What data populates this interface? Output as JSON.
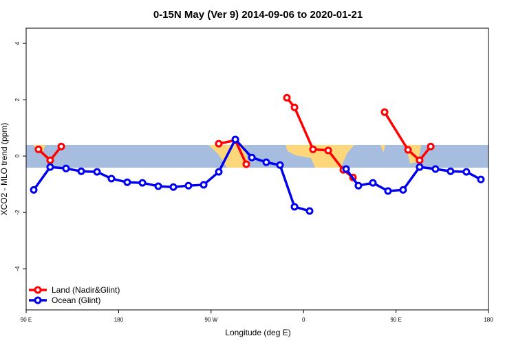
{
  "chart_data": {
    "type": "line",
    "title": "0-15N May (Ver 9)   2014-09-06 to 2020-01-21",
    "x_label": "Longitude (deg E)",
    "y_label": "XCO2 - MLO trend (ppm)",
    "xlim": [
      90,
      540
    ],
    "ylim": [
      -5.46,
      4.54
    ],
    "xticks": [
      {
        "value": 90,
        "label": "90 E"
      },
      {
        "value": 180,
        "label": "180"
      },
      {
        "value": 270,
        "label": "90 W"
      },
      {
        "value": 360,
        "label": "0"
      },
      {
        "value": 450,
        "label": "90 E"
      },
      {
        "value": 540,
        "label": "180"
      }
    ],
    "yticks": [
      -4,
      -2,
      0,
      2,
      4
    ],
    "legend": "bottom-left",
    "series": [
      {
        "name": "Land (Nadir&Glint)",
        "color": "#ff0000",
        "x": [
          102,
          113.4,
          124.2,
          null,
          277.5,
          293.6,
          304.3,
          null,
          343.8,
          351.2,
          369.2,
          384,
          398.7,
          408.1,
          null,
          438.9,
          461.7,
          473,
          483.8
        ],
        "values": [
          0.24,
          -0.15,
          0.34,
          null,
          0.44,
          0.56,
          -0.29,
          null,
          2.07,
          1.73,
          0.24,
          0.2,
          -0.49,
          -0.76,
          null,
          1.56,
          0.22,
          -0.15,
          0.34
        ]
      },
      {
        "name": "Ocean (Glint)",
        "color": "#0000ee",
        "x": [
          97.4,
          113.4,
          128.8,
          143.6,
          159,
          173,
          188.4,
          203.2,
          218.6,
          233.3,
          248,
          262.8,
          277.5,
          293.6,
          309.7,
          323.7,
          337.1,
          351.2,
          365.9,
          null,
          401.4,
          413.4,
          427.5,
          442.2,
          456.9,
          473,
          488.4,
          503.1,
          518.5,
          532.6
        ],
        "values": [
          -1.2,
          -0.39,
          -0.44,
          -0.54,
          -0.56,
          -0.8,
          -0.93,
          -0.95,
          -1.07,
          -1.1,
          -1.05,
          -1.02,
          -0.56,
          0.59,
          -0.05,
          -0.22,
          -0.32,
          -1.8,
          -1.95,
          null,
          -0.46,
          -1.05,
          -0.95,
          -1.24,
          -1.2,
          -0.39,
          -0.46,
          -0.54,
          -0.56,
          -0.83
        ]
      }
    ]
  }
}
